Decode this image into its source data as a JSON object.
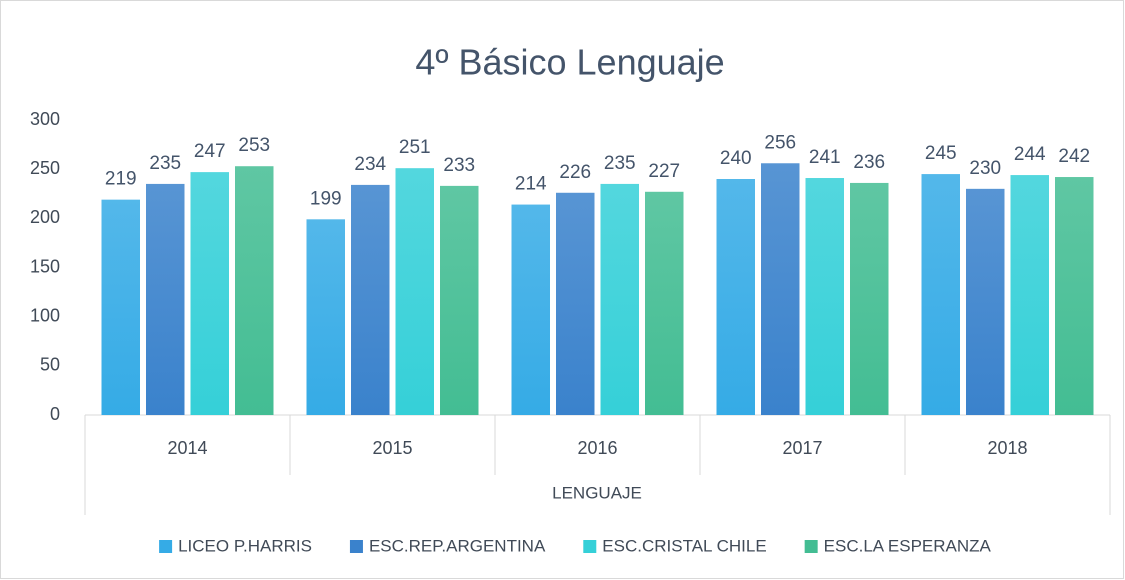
{
  "chart_data": {
    "type": "bar",
    "title": "4º Básico Lenguaje",
    "xlabel": "LENGUAJE",
    "categories": [
      "2014",
      "2015",
      "2016",
      "2017",
      "2018"
    ],
    "series": [
      {
        "name": "LICEO P.HARRIS",
        "color": "#35abe6",
        "values": [
          219,
          199,
          214,
          240,
          245
        ]
      },
      {
        "name": "ESC.REP.ARGENTINA",
        "color": "#3a82cc",
        "values": [
          235,
          234,
          226,
          256,
          230
        ]
      },
      {
        "name": "ESC.CRISTAL CHILE",
        "color": "#35d0d8",
        "values": [
          247,
          251,
          235,
          241,
          244
        ]
      },
      {
        "name": "ESC.LA ESPERANZA",
        "color": "#43bd93",
        "values": [
          253,
          233,
          227,
          236,
          242
        ]
      }
    ],
    "ylim": [
      0,
      300
    ],
    "yticks": [
      0,
      50,
      100,
      150,
      200,
      250,
      300
    ],
    "grid": false,
    "legend": "bottom"
  }
}
